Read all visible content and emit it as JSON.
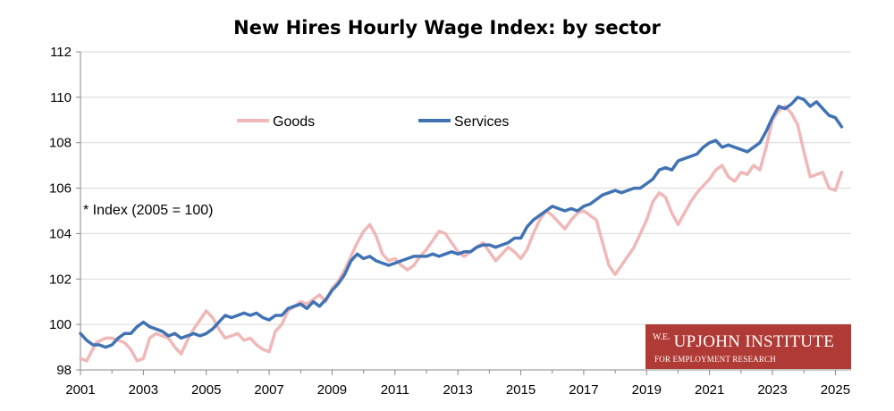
{
  "chart_data": {
    "type": "line",
    "title": "New Hires Hourly Wage Index: by sector",
    "annotation": "* Index (2005 = 100)",
    "xlabel": "",
    "ylabel": "",
    "xlim": [
      2001,
      2025.5
    ],
    "ylim": [
      98,
      112
    ],
    "x_ticks": [
      "2001",
      "2003",
      "2005",
      "2007",
      "2009",
      "2011",
      "2013",
      "2015",
      "2017",
      "2019",
      "2021",
      "2023",
      "2025"
    ],
    "y_ticks": [
      "98",
      "100",
      "102",
      "104",
      "106",
      "108",
      "110",
      "112"
    ],
    "grid": "horizontal",
    "legend_position": "top-left",
    "series": [
      {
        "name": "Goods",
        "color": "#f0b8b8",
        "points": [
          [
            2001.0,
            98.5
          ],
          [
            2001.2,
            98.4
          ],
          [
            2001.5,
            99.2
          ],
          [
            2001.8,
            99.4
          ],
          [
            2002.0,
            99.4
          ],
          [
            2002.2,
            99.3
          ],
          [
            2002.4,
            99.2
          ],
          [
            2002.6,
            98.9
          ],
          [
            2002.8,
            98.4
          ],
          [
            2003.0,
            98.5
          ],
          [
            2003.2,
            99.4
          ],
          [
            2003.4,
            99.6
          ],
          [
            2003.6,
            99.5
          ],
          [
            2003.8,
            99.4
          ],
          [
            2004.0,
            99.0
          ],
          [
            2004.2,
            98.7
          ],
          [
            2004.4,
            99.3
          ],
          [
            2004.6,
            99.8
          ],
          [
            2004.8,
            100.2
          ],
          [
            2005.0,
            100.6
          ],
          [
            2005.2,
            100.3
          ],
          [
            2005.4,
            99.8
          ],
          [
            2005.6,
            99.4
          ],
          [
            2005.8,
            99.5
          ],
          [
            2006.0,
            99.6
          ],
          [
            2006.2,
            99.3
          ],
          [
            2006.4,
            99.4
          ],
          [
            2006.6,
            99.1
          ],
          [
            2006.8,
            98.9
          ],
          [
            2007.0,
            98.8
          ],
          [
            2007.2,
            99.7
          ],
          [
            2007.4,
            100.0
          ],
          [
            2007.6,
            100.6
          ],
          [
            2007.8,
            100.8
          ],
          [
            2008.0,
            101.0
          ],
          [
            2008.2,
            100.9
          ],
          [
            2008.4,
            101.1
          ],
          [
            2008.6,
            101.3
          ],
          [
            2008.8,
            101.0
          ],
          [
            2009.0,
            101.6
          ],
          [
            2009.2,
            101.9
          ],
          [
            2009.4,
            102.4
          ],
          [
            2009.6,
            103.0
          ],
          [
            2009.8,
            103.6
          ],
          [
            2010.0,
            104.1
          ],
          [
            2010.2,
            104.4
          ],
          [
            2010.4,
            103.9
          ],
          [
            2010.6,
            103.1
          ],
          [
            2010.8,
            102.8
          ],
          [
            2011.0,
            102.9
          ],
          [
            2011.2,
            102.6
          ],
          [
            2011.4,
            102.4
          ],
          [
            2011.6,
            102.6
          ],
          [
            2011.8,
            103.0
          ],
          [
            2012.0,
            103.3
          ],
          [
            2012.2,
            103.7
          ],
          [
            2012.4,
            104.1
          ],
          [
            2012.6,
            104.0
          ],
          [
            2012.8,
            103.6
          ],
          [
            2013.0,
            103.2
          ],
          [
            2013.2,
            103.0
          ],
          [
            2013.4,
            103.2
          ],
          [
            2013.6,
            103.4
          ],
          [
            2013.8,
            103.6
          ],
          [
            2014.0,
            103.2
          ],
          [
            2014.2,
            102.8
          ],
          [
            2014.4,
            103.1
          ],
          [
            2014.6,
            103.4
          ],
          [
            2014.8,
            103.2
          ],
          [
            2015.0,
            102.9
          ],
          [
            2015.2,
            103.3
          ],
          [
            2015.4,
            104.0
          ],
          [
            2015.6,
            104.6
          ],
          [
            2015.8,
            105.0
          ],
          [
            2016.0,
            104.8
          ],
          [
            2016.2,
            104.5
          ],
          [
            2016.4,
            104.2
          ],
          [
            2016.6,
            104.6
          ],
          [
            2016.8,
            104.9
          ],
          [
            2017.0,
            105.0
          ],
          [
            2017.2,
            104.8
          ],
          [
            2017.4,
            104.6
          ],
          [
            2017.6,
            103.6
          ],
          [
            2017.8,
            102.6
          ],
          [
            2018.0,
            102.2
          ],
          [
            2018.2,
            102.6
          ],
          [
            2018.4,
            103.0
          ],
          [
            2018.6,
            103.4
          ],
          [
            2018.8,
            104.0
          ],
          [
            2019.0,
            104.6
          ],
          [
            2019.2,
            105.4
          ],
          [
            2019.4,
            105.8
          ],
          [
            2019.6,
            105.6
          ],
          [
            2019.8,
            104.9
          ],
          [
            2020.0,
            104.4
          ],
          [
            2020.2,
            104.9
          ],
          [
            2020.4,
            105.4
          ],
          [
            2020.6,
            105.8
          ],
          [
            2020.8,
            106.1
          ],
          [
            2021.0,
            106.4
          ],
          [
            2021.2,
            106.8
          ],
          [
            2021.4,
            107.0
          ],
          [
            2021.6,
            106.5
          ],
          [
            2021.8,
            106.3
          ],
          [
            2022.0,
            106.7
          ],
          [
            2022.2,
            106.6
          ],
          [
            2022.4,
            107.0
          ],
          [
            2022.6,
            106.8
          ],
          [
            2022.8,
            107.8
          ],
          [
            2023.0,
            109.0
          ],
          [
            2023.2,
            109.4
          ],
          [
            2023.4,
            109.6
          ],
          [
            2023.6,
            109.3
          ],
          [
            2023.8,
            108.8
          ],
          [
            2024.0,
            107.6
          ],
          [
            2024.2,
            106.5
          ],
          [
            2024.4,
            106.6
          ],
          [
            2024.6,
            106.7
          ],
          [
            2024.8,
            106.0
          ],
          [
            2025.0,
            105.9
          ],
          [
            2025.2,
            106.7
          ]
        ]
      },
      {
        "name": "Services",
        "color": "#4173b4",
        "points": [
          [
            2001.0,
            99.6
          ],
          [
            2001.2,
            99.3
          ],
          [
            2001.4,
            99.1
          ],
          [
            2001.6,
            99.1
          ],
          [
            2001.8,
            99.0
          ],
          [
            2002.0,
            99.1
          ],
          [
            2002.2,
            99.4
          ],
          [
            2002.4,
            99.6
          ],
          [
            2002.6,
            99.6
          ],
          [
            2002.8,
            99.9
          ],
          [
            2003.0,
            100.1
          ],
          [
            2003.2,
            99.9
          ],
          [
            2003.4,
            99.8
          ],
          [
            2003.6,
            99.7
          ],
          [
            2003.8,
            99.5
          ],
          [
            2004.0,
            99.6
          ],
          [
            2004.2,
            99.4
          ],
          [
            2004.4,
            99.5
          ],
          [
            2004.6,
            99.6
          ],
          [
            2004.8,
            99.5
          ],
          [
            2005.0,
            99.6
          ],
          [
            2005.2,
            99.8
          ],
          [
            2005.4,
            100.1
          ],
          [
            2005.6,
            100.4
          ],
          [
            2005.8,
            100.3
          ],
          [
            2006.0,
            100.4
          ],
          [
            2006.2,
            100.5
          ],
          [
            2006.4,
            100.4
          ],
          [
            2006.6,
            100.5
          ],
          [
            2006.8,
            100.3
          ],
          [
            2007.0,
            100.2
          ],
          [
            2007.2,
            100.4
          ],
          [
            2007.4,
            100.4
          ],
          [
            2007.6,
            100.7
          ],
          [
            2007.8,
            100.8
          ],
          [
            2008.0,
            100.9
          ],
          [
            2008.2,
            100.7
          ],
          [
            2008.4,
            101.0
          ],
          [
            2008.6,
            100.8
          ],
          [
            2008.8,
            101.1
          ],
          [
            2009.0,
            101.5
          ],
          [
            2009.2,
            101.8
          ],
          [
            2009.4,
            102.2
          ],
          [
            2009.6,
            102.8
          ],
          [
            2009.8,
            103.1
          ],
          [
            2010.0,
            102.9
          ],
          [
            2010.2,
            103.0
          ],
          [
            2010.4,
            102.8
          ],
          [
            2010.6,
            102.7
          ],
          [
            2010.8,
            102.6
          ],
          [
            2011.0,
            102.7
          ],
          [
            2011.2,
            102.8
          ],
          [
            2011.4,
            102.9
          ],
          [
            2011.6,
            103.0
          ],
          [
            2011.8,
            103.0
          ],
          [
            2012.0,
            103.0
          ],
          [
            2012.2,
            103.1
          ],
          [
            2012.4,
            103.0
          ],
          [
            2012.6,
            103.1
          ],
          [
            2012.8,
            103.2
          ],
          [
            2013.0,
            103.1
          ],
          [
            2013.2,
            103.2
          ],
          [
            2013.4,
            103.2
          ],
          [
            2013.6,
            103.4
          ],
          [
            2013.8,
            103.5
          ],
          [
            2014.0,
            103.5
          ],
          [
            2014.2,
            103.4
          ],
          [
            2014.4,
            103.5
          ],
          [
            2014.6,
            103.6
          ],
          [
            2014.8,
            103.8
          ],
          [
            2015.0,
            103.8
          ],
          [
            2015.2,
            104.3
          ],
          [
            2015.4,
            104.6
          ],
          [
            2015.6,
            104.8
          ],
          [
            2015.8,
            105.0
          ],
          [
            2016.0,
            105.2
          ],
          [
            2016.2,
            105.1
          ],
          [
            2016.4,
            105.0
          ],
          [
            2016.6,
            105.1
          ],
          [
            2016.8,
            105.0
          ],
          [
            2017.0,
            105.2
          ],
          [
            2017.2,
            105.3
          ],
          [
            2017.4,
            105.5
          ],
          [
            2017.6,
            105.7
          ],
          [
            2017.8,
            105.8
          ],
          [
            2018.0,
            105.9
          ],
          [
            2018.2,
            105.8
          ],
          [
            2018.4,
            105.9
          ],
          [
            2018.6,
            106.0
          ],
          [
            2018.8,
            106.0
          ],
          [
            2019.0,
            106.2
          ],
          [
            2019.2,
            106.4
          ],
          [
            2019.4,
            106.8
          ],
          [
            2019.6,
            106.9
          ],
          [
            2019.8,
            106.8
          ],
          [
            2020.0,
            107.2
          ],
          [
            2020.2,
            107.3
          ],
          [
            2020.4,
            107.4
          ],
          [
            2020.6,
            107.5
          ],
          [
            2020.8,
            107.8
          ],
          [
            2021.0,
            108.0
          ],
          [
            2021.2,
            108.1
          ],
          [
            2021.4,
            107.8
          ],
          [
            2021.6,
            107.9
          ],
          [
            2021.8,
            107.8
          ],
          [
            2022.0,
            107.7
          ],
          [
            2022.2,
            107.6
          ],
          [
            2022.4,
            107.8
          ],
          [
            2022.6,
            108.0
          ],
          [
            2022.8,
            108.5
          ],
          [
            2023.0,
            109.1
          ],
          [
            2023.2,
            109.6
          ],
          [
            2023.4,
            109.5
          ],
          [
            2023.6,
            109.7
          ],
          [
            2023.8,
            110.0
          ],
          [
            2024.0,
            109.9
          ],
          [
            2024.2,
            109.6
          ],
          [
            2024.4,
            109.8
          ],
          [
            2024.6,
            109.5
          ],
          [
            2024.8,
            109.2
          ],
          [
            2025.0,
            109.1
          ],
          [
            2025.2,
            108.7
          ]
        ]
      }
    ]
  },
  "watermark": {
    "prefix": "W.E.",
    "name": "UPJOHN INSTITUTE",
    "subtitle": "FOR EMPLOYMENT RESEARCH",
    "background": "#b03a35"
  }
}
